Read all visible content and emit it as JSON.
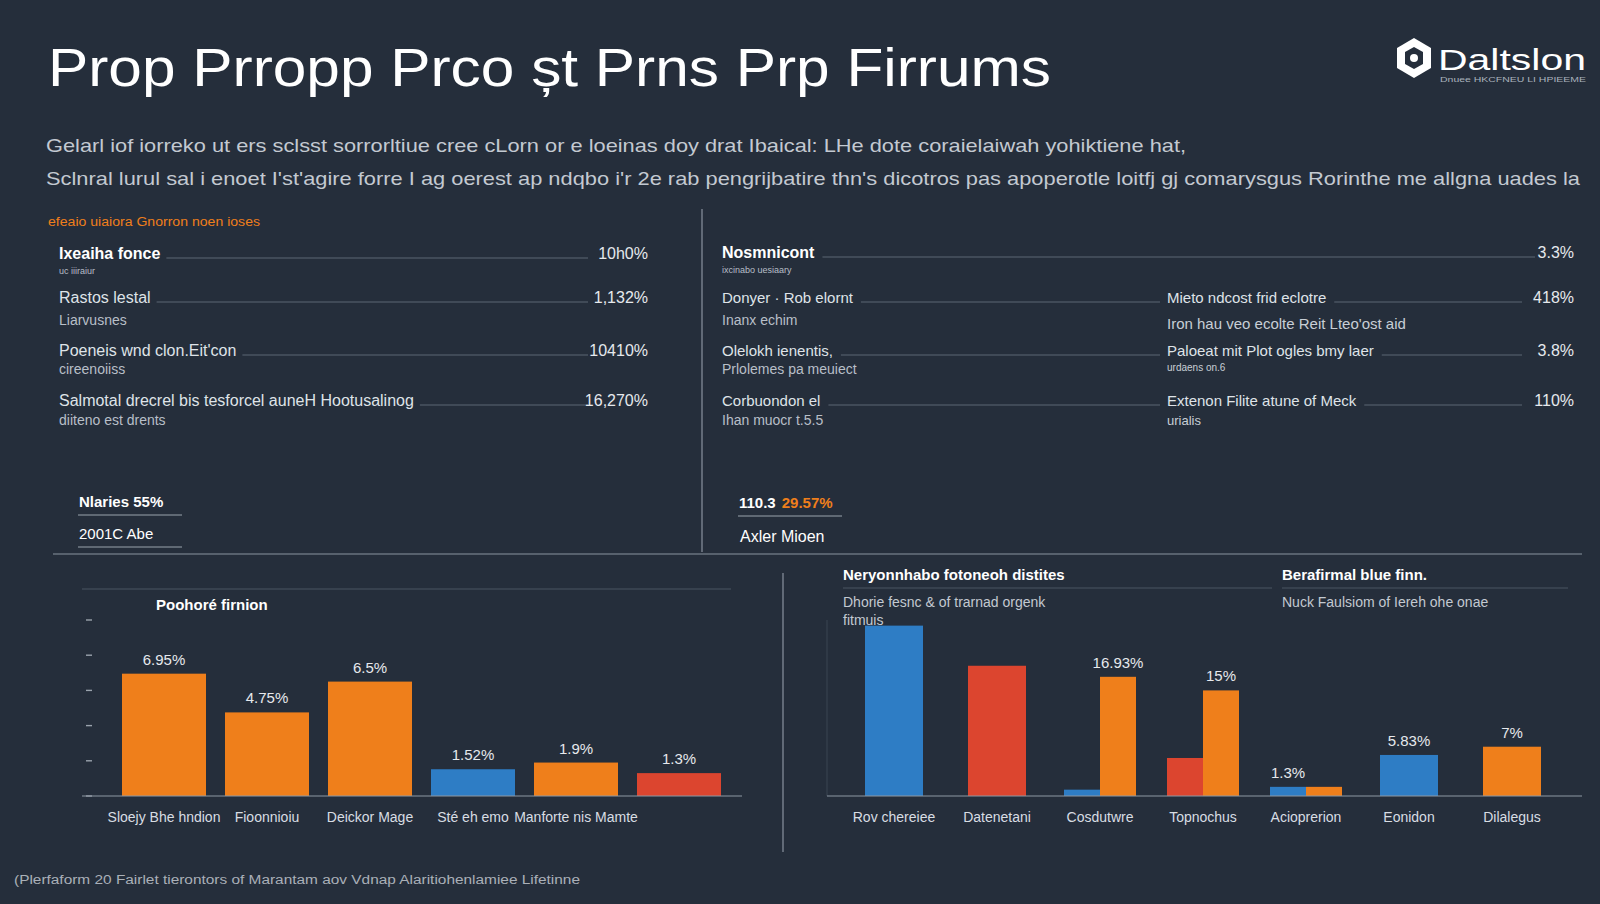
{
  "header": {
    "title": "Prop Prropp Prco șt Prns Prp Firrums",
    "logo": "Daltslon",
    "logo_tagline": "Dnuee HKCFNEU LI HPIEEME",
    "subtitle": [
      "Gelarl iof iorreko ut ers sclsst sorrorltiue cree cLorn or e loeinas doy drat Ibaical: LHe dote coraielaiwah yohiktiene hat,",
      "Sclnral lurul sal i enoet I'st'agire forre I ag oerest ap ndqbo i'r 2e rab pengrijbatire thn's dicotros pas apoperotle loitfj gj comarysgus Rorinthe me allgna uades la"
    ]
  },
  "left_panel": {
    "heading": "efeaio uiaiora Gnorron noen ioses",
    "rows": [
      {
        "label": "Ixeaiha fonce",
        "sublabel": "uc iiiraiur",
        "value": "10h0%"
      },
      {
        "label": "Rastos lestal",
        "sublabel": "Liarvusnes",
        "value": "1,132%"
      },
      {
        "label": "Poeneis wnd clon.Eit'con",
        "sublabel": "cireenoiiss",
        "value": "10410%"
      },
      {
        "label": "Salmotal drecrel bis tesforcel auneH Hootusalinog",
        "sublabel": "diiteno est drents",
        "value": "16,270%"
      }
    ],
    "footer": [
      "Nlaries 55%",
      "2001C Abe"
    ]
  },
  "right_panel": {
    "header": {
      "label": "Nosmnicont",
      "sublabel": "ixcinabo uesiaary",
      "value": "3.3%"
    },
    "left_rows": [
      {
        "label": "Donyer · Rob elornt",
        "sublabel": "Inanx echim"
      },
      {
        "label": "Olelokh ienentis,",
        "sublabel": "Prlolemes pa meuiect"
      },
      {
        "label": "Corbuondon el",
        "sublabel": "Ihan muocr t.5.5"
      }
    ],
    "right_rows": [
      {
        "label": "Mieto ndcost frid eclotre",
        "sublabel": "Iron hau veo ecolte Reit Lteo'ost aid",
        "value": "418%"
      },
      {
        "label": "Paloeat mit Plot ogles bmy laer",
        "sublabel": "urdaens   on.6",
        "value": "3.8%"
      },
      {
        "label": "Extenon Filite atune of Meck",
        "sublabel": "urialis",
        "value": "110%"
      }
    ],
    "footer": {
      "figure": "110.3",
      "highlight": "29.57%",
      "caption": "Axler Mioen"
    }
  },
  "chart_data": [
    {
      "type": "bar",
      "title": "Poohoré firnion",
      "categories": [
        "Sloejy Bhe hndion",
        "Fioonnioiu",
        "Deickor Mage",
        "Sté eh emo",
        "Manforte nis Mamte",
        null
      ],
      "values": [
        6.95,
        4.75,
        6.5,
        1.52,
        1.9,
        1.3
      ],
      "value_labels": [
        "6.95%",
        "4.75%",
        "6.5%",
        "1.52%",
        "1.9%",
        "1.3%"
      ],
      "colors": [
        "#ef7f1b",
        "#ef7f1b",
        "#ef7f1b",
        "#2e7dc5",
        "#ef7f1b",
        "#dc452f"
      ],
      "ylim": [
        0,
        10
      ],
      "yticks": [
        0,
        2,
        4,
        6,
        8,
        10
      ],
      "grid": false,
      "tick_labels": "x",
      "data_labels": true
    },
    {
      "type": "bar",
      "title": "Neryonnhabo fotoneoh distites",
      "subtitle": [
        "Dhorie fesnc & of trarnad orgenk",
        "fitmuis"
      ],
      "annotations": [
        {
          "title": "Berafirmal blue finn.",
          "text": "Nuck Faulsiom of Iereh ohe onae"
        }
      ],
      "categories": [
        "Rov chereiee",
        "Datenetani",
        "Cosdutwre",
        "Topnochus",
        "Acioprerion",
        "Eonidon",
        "Dilalegus"
      ],
      "series": [
        {
          "color": "#2e7dc5",
          "values": [
            24.2,
            null,
            0.9,
            null,
            1.3,
            5.83,
            null
          ],
          "value_labels": [
            null,
            null,
            null,
            null,
            "1.3%",
            "5.83%",
            null
          ]
        },
        {
          "color": "#dc452f",
          "values": [
            null,
            18.5,
            null,
            5.4,
            null,
            null,
            null
          ]
        },
        {
          "color": "#ef7f1b",
          "values": [
            null,
            null,
            16.93,
            15,
            1.3,
            null,
            7
          ],
          "value_labels": [
            null,
            null,
            "16.93%",
            "15%",
            null,
            null,
            "7%"
          ]
        }
      ],
      "ylim": [
        0,
        25
      ],
      "grid": false,
      "tick_labels": "x",
      "data_labels": true
    }
  ],
  "footnote": "(Plerfaform 20 Fairlet tierontors of Marantam aov Vdnap Alaritiohenlamiee Lifetinne"
}
